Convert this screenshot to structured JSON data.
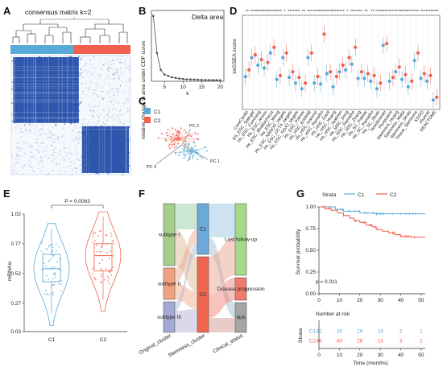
{
  "colors": {
    "c1": "#5aa9d6",
    "c2": "#f0604c",
    "heat": "#1f4aa8"
  },
  "panels": {
    "A": {
      "label": "A",
      "title": "consensus matrix k=2",
      "legend": [
        "C1",
        "C2"
      ]
    },
    "B": {
      "label": "B",
      "ylabel": "relative change in area under CDF curve"
    },
    "C": {
      "label": "C",
      "pc1": "PC 1",
      "pc2": "PC 2",
      "pc3": "PC 3"
    },
    "D": {
      "label": "D",
      "ylabel": "ssGSEA score"
    },
    "E": {
      "label": "E"
    },
    "F": {
      "label": "F"
    },
    "G": {
      "label": "G",
      "risk_title": "Number at risk",
      "risk_ylabel": "Strata"
    }
  },
  "chart_data": [
    {
      "panel": "A",
      "type": "heatmap",
      "title": "consensus matrix k=2",
      "clusters": [
        "C1",
        "C2"
      ],
      "cluster_sizes": [
        0.58,
        0.42
      ]
    },
    {
      "panel": "B",
      "type": "line",
      "legend": "Delta area",
      "x": [
        2,
        3,
        4,
        5,
        6,
        7,
        8,
        9,
        10,
        11,
        12,
        13,
        14,
        15,
        16,
        17,
        18,
        19,
        20
      ],
      "y": [
        0.97,
        0.42,
        0.17,
        0.1,
        0.08,
        0.06,
        0.05,
        0.04,
        0.035,
        0.03,
        0.028,
        0.026,
        0.024,
        0.022,
        0.02,
        0.019,
        0.018,
        0.017,
        0.016
      ],
      "xlabel": "k",
      "ylabel": "relative change in area under CDF curve",
      "xticks": [
        5,
        10,
        15,
        20
      ],
      "xlim": [
        1.5,
        21
      ],
      "ylim": [
        0,
        1.05
      ]
    },
    {
      "panel": "C",
      "type": "scatter",
      "axes": [
        "PC 1",
        "PC 2",
        "PC 3"
      ],
      "series": [
        {
          "name": "C1"
        },
        {
          "name": "C2"
        }
      ]
    },
    {
      "panel": "D",
      "type": "scatter",
      "ylabel": "ssGSEA score",
      "categories": [
        "CoreCardio",
        "ES_ESC_Sperger",
        "Hs_ESC_Cumming",
        "Hs_ESC_Assou",
        "Hs_ESC_Bhattacharya",
        "Hs_ESC_Wong",
        "Hs_ESC_NANOG_targets",
        "Hs_ESC_OCT4_targets",
        "Hs_ESC_SOX2_targets",
        "Hs_ESC_Palmer",
        "Hs_HSC_Eckfeldt",
        "Hs_HSC_Ivanova",
        "Hs_HSC_Ramalho",
        "Hs_HSC_Gazit",
        "Hs_HSC_Huang",
        "Hs_HSC_Jaatinen",
        "Hs_MSC_Song",
        "Hs_NSC_Ramalho",
        "Hs_NSC_Zhang",
        "Hs_SC_Palmer",
        "Hs_SC_Ramalho",
        "Hs_SC_Shats",
        "Nowakowski",
        "Pluripotent",
        "Stemness_Huang",
        "Stemness_Malta",
        "Stemness_Shats",
        "Tissue_Stemness",
        "KEGG",
        "Plurinet",
        "REACTOME"
      ],
      "significance": [
        "**",
        "****",
        "****",
        "****",
        "****",
        "****",
        "*",
        "****",
        "***",
        "**",
        "***",
        "****",
        "****",
        "****",
        "****",
        "****",
        "*",
        "****",
        "***",
        "**",
        "**",
        "****",
        "****",
        "***",
        "****",
        "****",
        "****",
        "***",
        "***",
        "****",
        "****"
      ],
      "series": [
        {
          "name": "C1",
          "values": [
            0.35,
            0.55,
            0.47,
            0.44,
            0.6,
            0.32,
            0.55,
            0.34,
            0.28,
            0.22,
            0.55,
            0.28,
            0.27,
            0.38,
            0.24,
            0.4,
            0.42,
            0.48,
            0.33,
            0.33,
            0.3,
            0.22,
            0.68,
            0.3,
            0.4,
            0.32,
            0.24,
            0.52,
            0.33,
            0.3,
            0.1
          ]
        },
        {
          "name": "C2",
          "values": [
            0.42,
            0.58,
            0.53,
            0.5,
            0.66,
            0.36,
            0.6,
            0.4,
            0.34,
            0.28,
            0.6,
            0.35,
            0.8,
            0.4,
            0.35,
            0.47,
            0.55,
            0.66,
            0.4,
            0.38,
            0.36,
            0.28,
            0.7,
            0.34,
            0.45,
            0.37,
            0.3,
            0.6,
            0.38,
            0.36,
            0.13
          ]
        }
      ],
      "ylim": [
        0,
        1
      ]
    },
    {
      "panel": "E",
      "type": "box",
      "categories": [
        "C1",
        "C2"
      ],
      "pvalue": "P = 0.0063",
      "ylabel": "mRNAsi",
      "yticks": [
        "0.03",
        "0.27",
        "0.52",
        "0.77",
        "1.02"
      ],
      "ylim": [
        0.03,
        1.02
      ],
      "series": [
        {
          "name": "C1",
          "median": 0.56,
          "q1": 0.45,
          "q3": 0.68,
          "whisker_low": 0.18,
          "whisker_high": 0.9
        },
        {
          "name": "C2",
          "median": 0.67,
          "q1": 0.54,
          "q3": 0.77,
          "whisker_low": 0.3,
          "whisker_high": 1.0
        }
      ]
    },
    {
      "panel": "F",
      "type": "sankey",
      "axes": [
        "Original_cluster",
        "Stemness_cluster",
        "Clinical_status"
      ],
      "nodes": {
        "Original_cluster": [
          "subtype I",
          "subtype II",
          "subtype III"
        ],
        "Stemness_cluster": [
          "C1",
          "C2"
        ],
        "Clinical_status": [
          "Lost follow-up",
          "Disease progression",
          "N/A"
        ]
      }
    },
    {
      "panel": "G",
      "type": "line",
      "legend_title": "Strata",
      "series": [
        {
          "name": "C1",
          "x": [
            0,
            8,
            12,
            20,
            27,
            52
          ],
          "y": [
            1.0,
            0.97,
            0.95,
            0.93,
            0.92,
            0.92
          ]
        },
        {
          "name": "C2",
          "x": [
            0,
            3,
            6,
            9,
            12,
            15,
            17,
            20,
            23,
            26,
            28,
            31,
            34,
            37,
            40,
            45,
            52
          ],
          "y": [
            1.0,
            0.98,
            0.96,
            0.93,
            0.9,
            0.87,
            0.84,
            0.82,
            0.79,
            0.77,
            0.74,
            0.72,
            0.7,
            0.68,
            0.66,
            0.65,
            0.65
          ]
        }
      ],
      "pvalue": "p = 0.011",
      "xlabel": "Time (months)",
      "ylabel": "Survival probability",
      "xticks": [
        0,
        10,
        20,
        30,
        40,
        50
      ],
      "yticks": [
        "0.00",
        "0.25",
        "0.50",
        "0.75",
        "1.00"
      ],
      "xlim": [
        0,
        52
      ],
      "ylim": [
        0,
        1
      ],
      "risk_table": {
        "title": "Number at risk",
        "times": [
          0,
          10,
          20,
          30,
          40,
          50
        ],
        "rows": [
          {
            "name": "C1",
            "counts": [
              42,
              39,
              29,
              14,
              2,
              1
            ]
          },
          {
            "name": "C2",
            "counts": [
              46,
              40,
              26,
              13,
              3,
              1
            ]
          }
        ]
      }
    }
  ]
}
